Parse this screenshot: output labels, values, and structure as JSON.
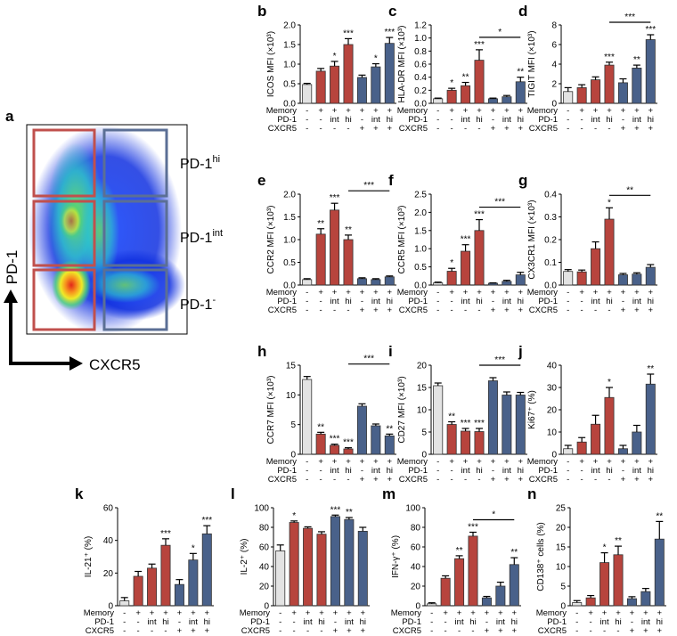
{
  "panel_a": {
    "label": "a",
    "x_axis_label": "CXCR5",
    "y_axis_label": "PD-1",
    "gates": [
      {
        "base": "PD-1",
        "sup": "hi"
      },
      {
        "base": "PD-1",
        "sup": "int"
      },
      {
        "base": "PD-1",
        "sup": "-"
      }
    ]
  },
  "groups": {
    "row_labels": [
      "Memory",
      "PD-1",
      "CXCR5"
    ],
    "rows": [
      [
        "-",
        "+",
        "+",
        "+",
        "+",
        "+",
        "+"
      ],
      [
        "-",
        "-",
        "int",
        "hi",
        "-",
        "int",
        "hi"
      ],
      [
        "-",
        "-",
        "-",
        "-",
        "+",
        "+",
        "+"
      ]
    ]
  },
  "colors": {
    "control": "#e3e3e3",
    "cxcr5_neg": "#b7443d",
    "cxcr5_pos": "#49618a",
    "gate_red": "#c0504d",
    "gate_blue": "#5b6f95"
  },
  "chart_data": [
    {
      "id": "b",
      "type": "bar",
      "ylabel": "ICOS MFI (×10³)",
      "ylim": [
        0,
        2
      ],
      "yticks": [
        "0.0",
        "0.5",
        "1.0",
        "1.5",
        "2.0"
      ],
      "values": [
        0.48,
        0.82,
        0.95,
        1.5,
        0.66,
        0.93,
        1.53
      ],
      "errors": [
        0.03,
        0.07,
        0.12,
        0.15,
        0.06,
        0.08,
        0.15
      ],
      "stars": [
        "",
        "",
        "*",
        "***",
        "",
        "*",
        "***"
      ],
      "bracket": null
    },
    {
      "id": "c",
      "type": "bar",
      "ylabel": "HLA-DR MFI (×10³)",
      "ylim": [
        0,
        1.2
      ],
      "yticks": [
        "0.0",
        "0.2",
        "0.4",
        "0.6",
        "0.8",
        "1.0",
        "1.2"
      ],
      "values": [
        0.07,
        0.2,
        0.27,
        0.66,
        0.07,
        0.1,
        0.33
      ],
      "errors": [
        0.01,
        0.03,
        0.05,
        0.16,
        0.01,
        0.02,
        0.07
      ],
      "stars": [
        "",
        "*",
        "**",
        "***",
        "",
        "",
        "**"
      ],
      "bracket": {
        "from": 3,
        "to": 6,
        "label": "*"
      }
    },
    {
      "id": "d",
      "type": "bar",
      "ylabel": "TIGIT MFI (×10³)",
      "ylim": [
        0,
        8
      ],
      "yticks": [
        "0",
        "2",
        "4",
        "6",
        "8"
      ],
      "values": [
        1.2,
        1.6,
        2.4,
        3.9,
        2.1,
        3.6,
        6.5
      ],
      "errors": [
        0.4,
        0.3,
        0.3,
        0.3,
        0.4,
        0.3,
        0.5
      ],
      "stars": [
        "",
        "",
        "",
        "***",
        "",
        "**",
        "***"
      ],
      "bracket": {
        "from": 3,
        "to": 6,
        "label": "***"
      }
    },
    {
      "id": "e",
      "type": "bar",
      "ylabel": "CCR2 MFI (×10³)",
      "ylim": [
        0,
        2
      ],
      "yticks": [
        "0.0",
        "0.5",
        "1.0",
        "1.5",
        "2.0"
      ],
      "values": [
        0.12,
        1.12,
        1.65,
        1.0,
        0.14,
        0.12,
        0.18
      ],
      "errors": [
        0.02,
        0.12,
        0.15,
        0.1,
        0.02,
        0.02,
        0.02
      ],
      "stars": [
        "",
        "**",
        "***",
        "**",
        "",
        "",
        ""
      ],
      "bracket": {
        "from": 3,
        "to": 6,
        "label": "***"
      }
    },
    {
      "id": "f",
      "type": "bar",
      "ylabel": "CCR5 MFI (×10³)",
      "ylim": [
        0,
        2.5
      ],
      "yticks": [
        "0.0",
        "0.5",
        "1.0",
        "1.5",
        "2.0",
        "2.5"
      ],
      "values": [
        0.06,
        0.38,
        0.93,
        1.5,
        0.05,
        0.1,
        0.28
      ],
      "errors": [
        0.02,
        0.08,
        0.18,
        0.3,
        0.01,
        0.03,
        0.07
      ],
      "stars": [
        "",
        "*",
        "***",
        "***",
        "",
        "",
        ""
      ],
      "bracket": {
        "from": 3,
        "to": 6,
        "label": "***"
      }
    },
    {
      "id": "g",
      "type": "bar",
      "ylabel": "CX3CR1 MFI (×10³)",
      "ylim": [
        0,
        0.4
      ],
      "yticks": [
        "0.0",
        "0.1",
        "0.2",
        "0.3",
        "0.4"
      ],
      "values": [
        0.06,
        0.058,
        0.16,
        0.29,
        0.045,
        0.048,
        0.078
      ],
      "errors": [
        0.008,
        0.008,
        0.03,
        0.05,
        0.006,
        0.006,
        0.012
      ],
      "stars": [
        "",
        "",
        "",
        "*",
        "",
        "",
        ""
      ],
      "bracket": {
        "from": 3,
        "to": 6,
        "label": "**"
      }
    },
    {
      "id": "h",
      "type": "bar",
      "ylabel": "CCR7 MFI (×10³)",
      "ylim": [
        0,
        15
      ],
      "yticks": [
        "0",
        "5",
        "10",
        "15"
      ],
      "values": [
        12.6,
        3.4,
        1.5,
        0.9,
        8.1,
        4.8,
        3.1
      ],
      "errors": [
        0.5,
        0.3,
        0.2,
        0.2,
        0.4,
        0.3,
        0.3
      ],
      "stars": [
        "",
        "**",
        "***",
        "***",
        "",
        "",
        "**"
      ],
      "bracket": {
        "from": 3,
        "to": 6,
        "label": "***"
      }
    },
    {
      "id": "i",
      "type": "bar",
      "ylabel": "CD27 MFI (×10³)",
      "ylim": [
        0,
        20
      ],
      "yticks": [
        "0",
        "5",
        "10",
        "15",
        "20"
      ],
      "values": [
        15.4,
        6.7,
        5.2,
        5.1,
        16.5,
        13.3,
        13.3
      ],
      "errors": [
        0.6,
        0.6,
        0.6,
        0.7,
        0.7,
        0.7,
        0.6
      ],
      "stars": [
        "",
        "**",
        "***",
        "***",
        "",
        "",
        ""
      ],
      "bracket": {
        "from": 3,
        "to": 6,
        "label": "***"
      }
    },
    {
      "id": "j",
      "type": "bar",
      "ylabel": "Ki67⁺ (%)",
      "ylim": [
        0,
        40
      ],
      "yticks": [
        "0",
        "10",
        "20",
        "30",
        "40"
      ],
      "values": [
        2.5,
        5.5,
        13.5,
        25.5,
        2.5,
        10,
        31.5
      ],
      "errors": [
        1.5,
        2,
        4,
        4.5,
        1.5,
        3,
        4.5
      ],
      "stars": [
        "",
        "",
        "",
        "*",
        "",
        "",
        "**"
      ],
      "bracket": null
    },
    {
      "id": "k",
      "type": "bar",
      "ylabel": "IL-21⁺ (%)",
      "ylim": [
        0,
        60
      ],
      "yticks": [
        "0",
        "20",
        "40",
        "60"
      ],
      "values": [
        3,
        18,
        23,
        37,
        13,
        28,
        44
      ],
      "errors": [
        2,
        3,
        2.5,
        4,
        3,
        4,
        5
      ],
      "stars": [
        "",
        "",
        "",
        "***",
        "",
        "*",
        "***"
      ],
      "bracket": null
    },
    {
      "id": "l",
      "type": "bar",
      "ylabel": "IL-2⁺ (%)",
      "ylim": [
        0,
        100
      ],
      "yticks": [
        "0",
        "20",
        "40",
        "60",
        "80",
        "100"
      ],
      "values": [
        56,
        85,
        79,
        73,
        91,
        88,
        76
      ],
      "errors": [
        6,
        1.5,
        1.5,
        2.5,
        1.5,
        2,
        4
      ],
      "stars": [
        "",
        "*",
        "",
        "",
        "***",
        "**",
        ""
      ],
      "bracket": null
    },
    {
      "id": "m",
      "type": "bar",
      "ylabel": "IFN-γ⁺ (%)",
      "ylim": [
        0,
        100
      ],
      "yticks": [
        "0",
        "20",
        "40",
        "60",
        "80",
        "100"
      ],
      "values": [
        2,
        28,
        48,
        71,
        8,
        20,
        42
      ],
      "errors": [
        1,
        2.5,
        3,
        4,
        1.5,
        4,
        7
      ],
      "stars": [
        "",
        "",
        "**",
        "***",
        "",
        "",
        "**"
      ],
      "bracket": {
        "from": 3,
        "to": 6,
        "label": "*"
      }
    },
    {
      "id": "n",
      "type": "bar",
      "ylabel": "CD138⁺ cells (%)",
      "ylim": [
        0,
        25
      ],
      "yticks": [
        "0",
        "5",
        "10",
        "15",
        "20",
        "25"
      ],
      "values": [
        0.8,
        2,
        11,
        13,
        1.8,
        3.6,
        17
      ],
      "errors": [
        0.5,
        0.6,
        2.5,
        2.2,
        0.5,
        0.8,
        4.5
      ],
      "stars": [
        "",
        "",
        "*",
        "**",
        "",
        "",
        "**"
      ],
      "bracket": null
    }
  ]
}
